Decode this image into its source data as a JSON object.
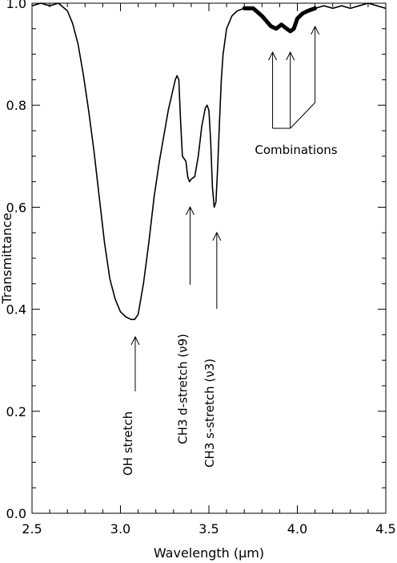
{
  "chart_data": {
    "type": "line",
    "title": "",
    "xlabel": "Wavelength (μm)",
    "ylabel": "Transmittance",
    "xlim": [
      2.5,
      4.5
    ],
    "ylim": [
      0.0,
      1.0
    ],
    "grid": false,
    "x_ticks": [
      2.5,
      3.0,
      3.5,
      4.0,
      4.5
    ],
    "x_tick_labels": [
      "2.5",
      "3.0",
      "3.5",
      "4.0",
      "4.5"
    ],
    "y_ticks": [
      0.0,
      0.2,
      0.4,
      0.6,
      0.8,
      1.0
    ],
    "y_tick_labels": [
      "0.0",
      "0.2",
      "0.4",
      "0.6",
      "0.8",
      "1.0"
    ],
    "series": [
      {
        "x": [
          2.5,
          2.55,
          2.6,
          2.65,
          2.7,
          2.73,
          2.76,
          2.79,
          2.82,
          2.85,
          2.88,
          2.91,
          2.94,
          2.97,
          3.0,
          3.03,
          3.06,
          3.08,
          3.1,
          3.13,
          3.16,
          3.19,
          3.22,
          3.25,
          3.27,
          3.29,
          3.31,
          3.32,
          3.33,
          3.34,
          3.35,
          3.36,
          3.37,
          3.38,
          3.39,
          3.4,
          3.42,
          3.44,
          3.46,
          3.48,
          3.49,
          3.5,
          3.51,
          3.52,
          3.53,
          3.54,
          3.55,
          3.56,
          3.57,
          3.58,
          3.6,
          3.63,
          3.66,
          3.7,
          3.75,
          3.8,
          3.85,
          3.88,
          3.91,
          3.94,
          3.96,
          3.98,
          4.0,
          4.03,
          4.06,
          4.1,
          4.15,
          4.2,
          4.25,
          4.3,
          4.35,
          4.4,
          4.45,
          4.5
        ],
        "y": [
          0.995,
          1.0,
          0.995,
          1.0,
          0.985,
          0.96,
          0.92,
          0.86,
          0.79,
          0.71,
          0.62,
          0.53,
          0.46,
          0.42,
          0.395,
          0.385,
          0.38,
          0.38,
          0.39,
          0.45,
          0.53,
          0.62,
          0.69,
          0.75,
          0.79,
          0.82,
          0.85,
          0.858,
          0.85,
          0.77,
          0.7,
          0.695,
          0.69,
          0.66,
          0.65,
          0.655,
          0.66,
          0.7,
          0.76,
          0.795,
          0.8,
          0.79,
          0.73,
          0.64,
          0.6,
          0.61,
          0.68,
          0.77,
          0.85,
          0.9,
          0.95,
          0.975,
          0.985,
          0.99,
          0.99,
          0.975,
          0.955,
          0.95,
          0.958,
          0.95,
          0.945,
          0.95,
          0.97,
          0.98,
          0.985,
          0.99,
          0.995,
          0.99,
          0.995,
          0.99,
          0.995,
          1.0,
          0.995,
          0.99
        ]
      }
    ],
    "annotations": [
      {
        "text": "OH stretch",
        "x": 3.07,
        "y": 0.38
      },
      {
        "text": "CH3 d-stretch (ν9)",
        "x": 3.38,
        "y": 0.65
      },
      {
        "text": "CH3 s-stretch (ν3)",
        "x": 3.54,
        "y": 0.6
      },
      {
        "text": "Combinations",
        "targets": [
          [
            3.86,
            0.955
          ],
          [
            3.96,
            0.95
          ],
          [
            4.1,
            0.965
          ]
        ]
      }
    ]
  }
}
